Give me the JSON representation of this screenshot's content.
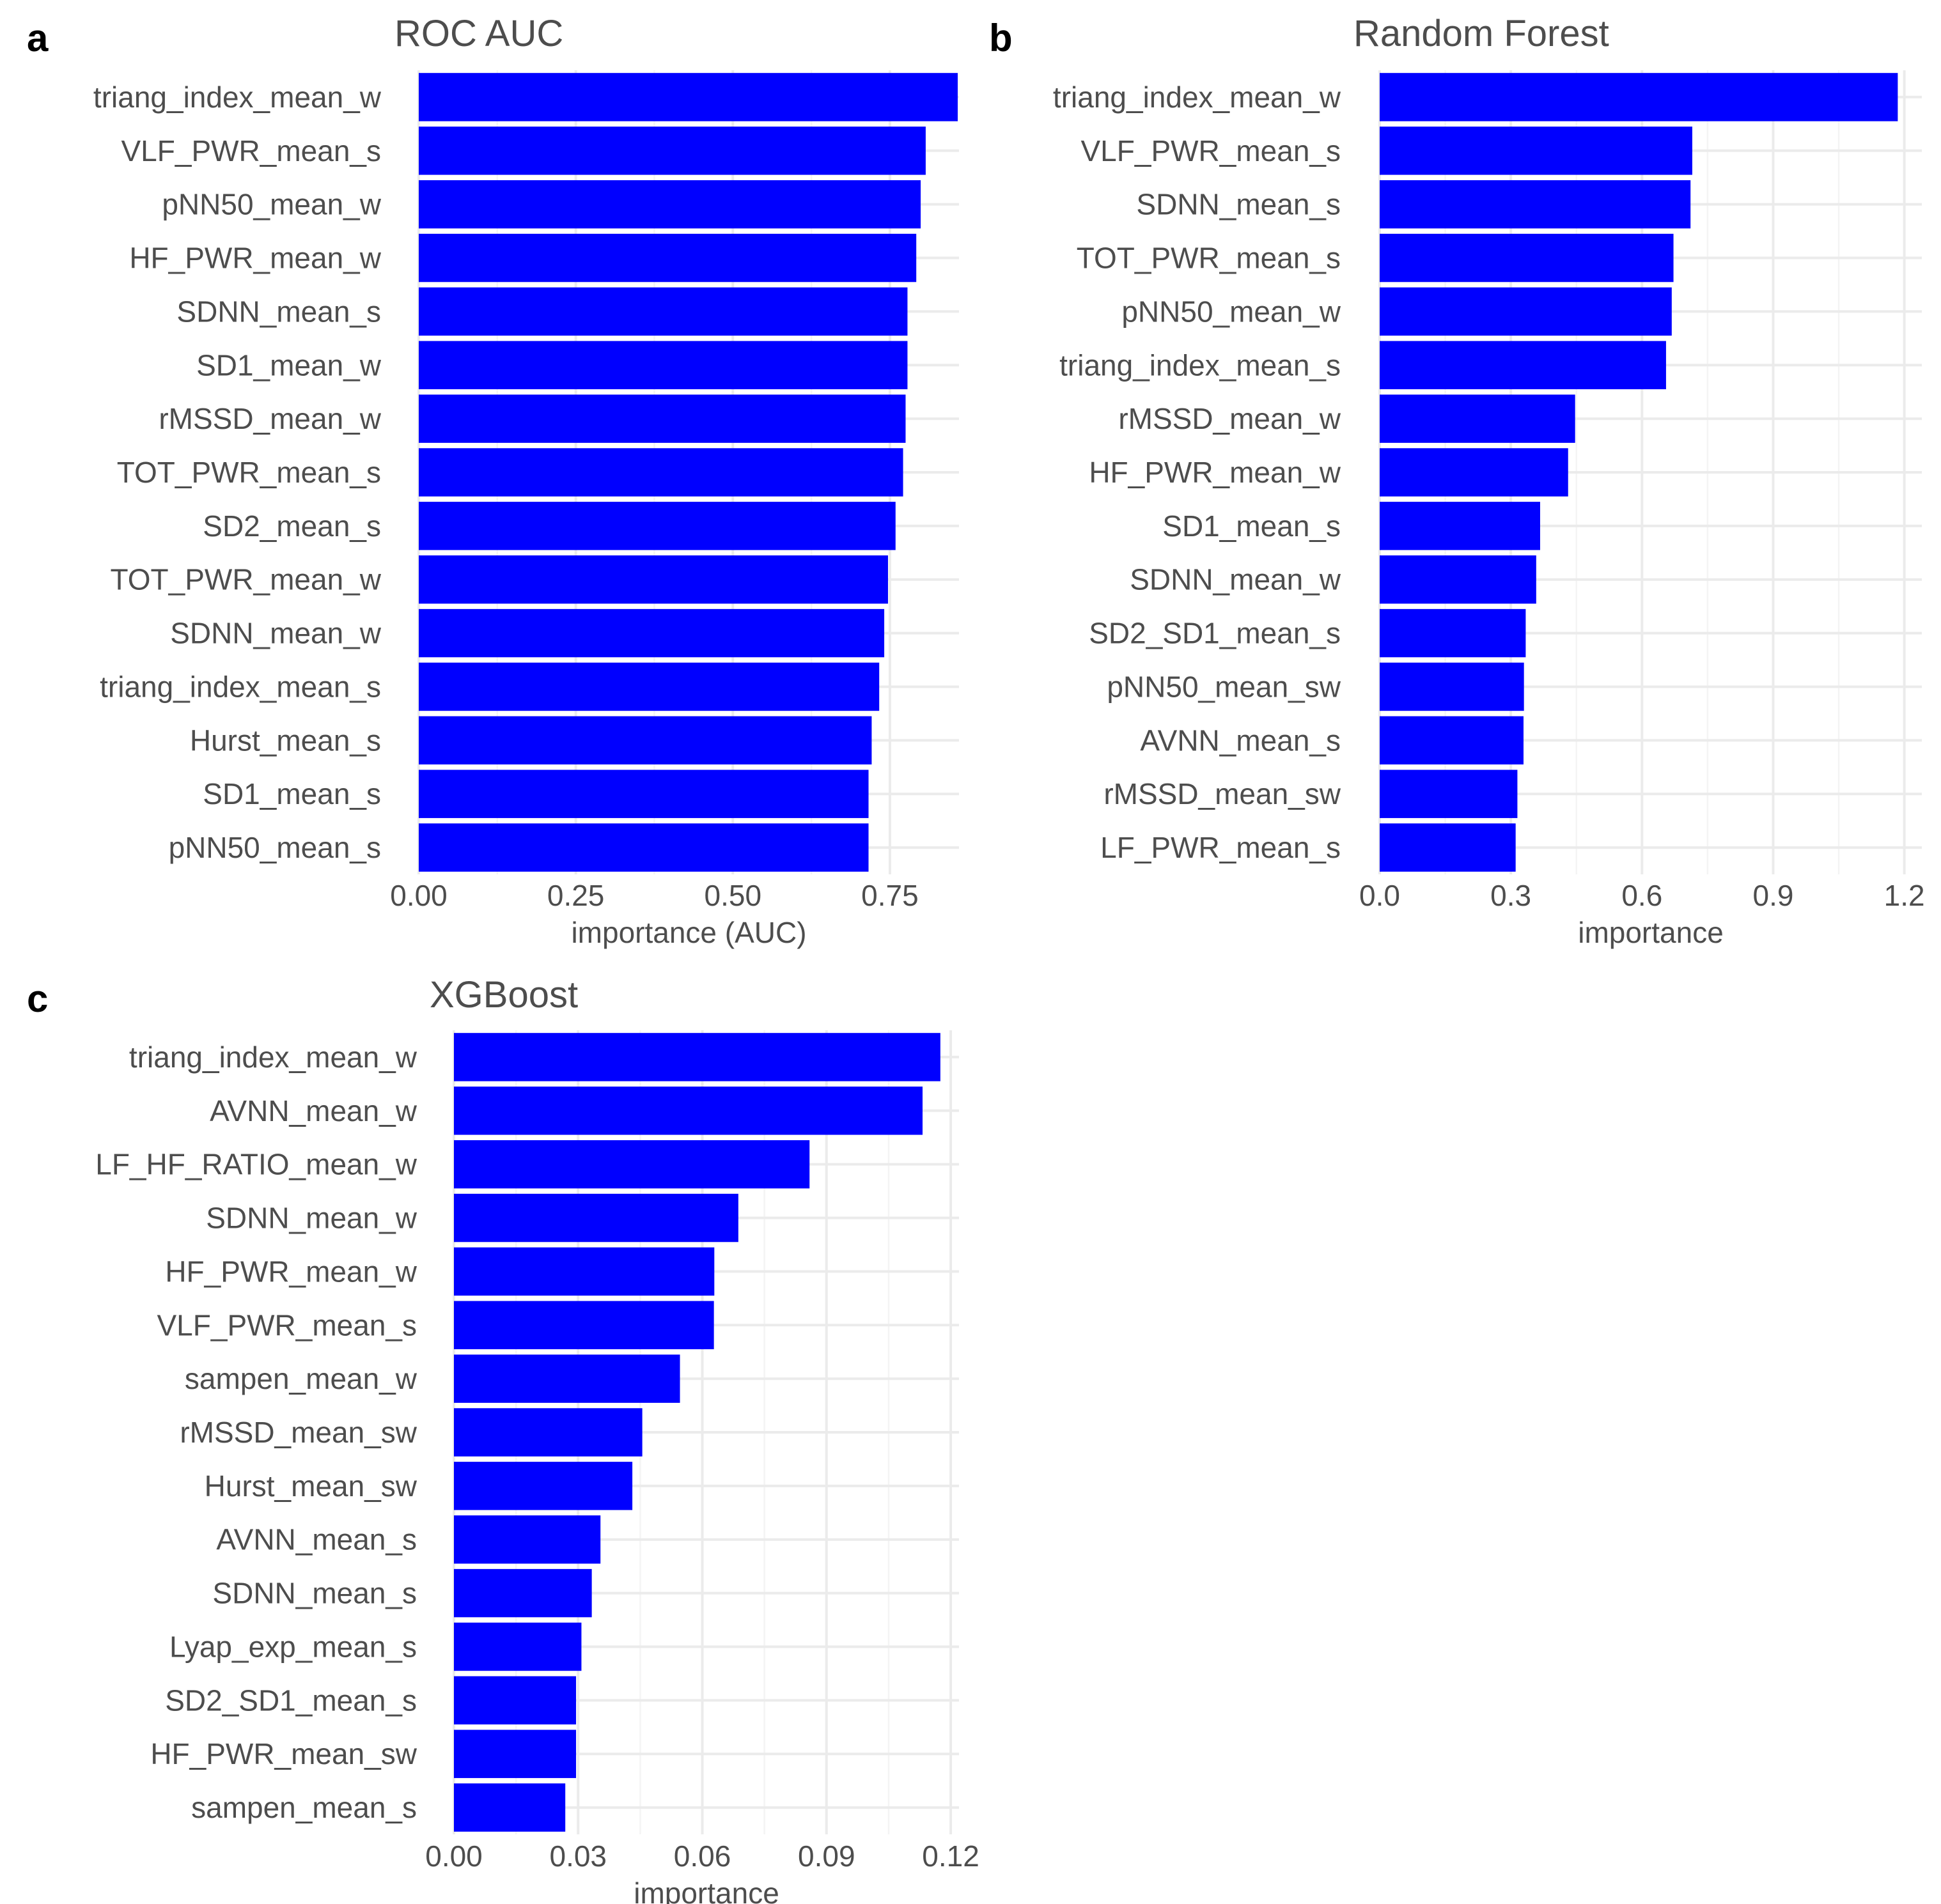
{
  "chart_data": [
    {
      "id": "a",
      "panel_tag": "a",
      "type": "bar",
      "orientation": "horizontal",
      "title": "ROC AUC",
      "xlabel": "importance (AUC)",
      "ylabel": "",
      "xlim": [
        0,
        0.86
      ],
      "xticks": [
        0,
        0.25,
        0.5,
        0.75
      ],
      "xtick_labels": [
        "0.00",
        "0.25",
        "0.50",
        "0.75"
      ],
      "categories": [
        "triang_index_mean_w",
        "VLF_PWR_mean_s",
        "pNN50_mean_w",
        "HF_PWR_mean_w",
        "SDNN_mean_s",
        "SD1_mean_w",
        "rMSSD_mean_w",
        "TOT_PWR_mean_s",
        "SD2_mean_s",
        "TOT_PWR_mean_w",
        "SDNN_mean_w",
        "triang_index_mean_s",
        "Hurst_mean_s",
        "SD1_mean_s",
        "pNN50_mean_s"
      ],
      "values": [
        0.858,
        0.807,
        0.799,
        0.792,
        0.778,
        0.778,
        0.775,
        0.771,
        0.759,
        0.747,
        0.741,
        0.733,
        0.721,
        0.716,
        0.716
      ],
      "color": "#0000ff"
    },
    {
      "id": "b",
      "panel_tag": "b",
      "type": "bar",
      "orientation": "horizontal",
      "title": "Random Forest",
      "xlabel": "importance",
      "ylabel": "",
      "xlim": [
        0,
        1.24
      ],
      "xticks": [
        0,
        0.3,
        0.6,
        0.9,
        1.2
      ],
      "xtick_labels": [
        "0.0",
        "0.3",
        "0.6",
        "0.9",
        "1.2"
      ],
      "categories": [
        "triang_index_mean_w",
        "VLF_PWR_mean_s",
        "SDNN_mean_s",
        "TOT_PWR_mean_s",
        "pNN50_mean_w",
        "triang_index_mean_s",
        "rMSSD_mean_w",
        "HF_PWR_mean_w",
        "SD1_mean_s",
        "SDNN_mean_w",
        "SD2_SD1_mean_s",
        "pNN50_mean_sw",
        "AVNN_mean_s",
        "rMSSD_mean_sw",
        "LF_PWR_mean_s"
      ],
      "values": [
        1.185,
        0.715,
        0.711,
        0.672,
        0.668,
        0.655,
        0.447,
        0.431,
        0.367,
        0.358,
        0.334,
        0.33,
        0.329,
        0.315,
        0.311
      ],
      "color": "#0000ff"
    },
    {
      "id": "c",
      "panel_tag": "c",
      "type": "bar",
      "orientation": "horizontal",
      "title": "XGBoost",
      "xlabel": "importance",
      "ylabel": "",
      "xlim": [
        0,
        0.122
      ],
      "xticks": [
        0,
        0.03,
        0.06,
        0.09,
        0.12
      ],
      "xtick_labels": [
        "0.00",
        "0.03",
        "0.06",
        "0.09",
        "0.12"
      ],
      "categories": [
        "triang_index_mean_w",
        "AVNN_mean_w",
        "LF_HF_RATIO_mean_w",
        "SDNN_mean_w",
        "HF_PWR_mean_w",
        "VLF_PWR_mean_s",
        "sampen_mean_w",
        "rMSSD_mean_sw",
        "Hurst_mean_sw",
        "AVNN_mean_s",
        "SDNN_mean_s",
        "Lyap_exp_mean_s",
        "SD2_SD1_mean_s",
        "HF_PWR_mean_sw",
        "sampen_mean_s"
      ],
      "values": [
        0.1175,
        0.1132,
        0.0859,
        0.0687,
        0.0629,
        0.0628,
        0.0546,
        0.0455,
        0.0431,
        0.0354,
        0.0333,
        0.0308,
        0.0295,
        0.0295,
        0.0269
      ],
      "color": "#0000ff"
    }
  ]
}
